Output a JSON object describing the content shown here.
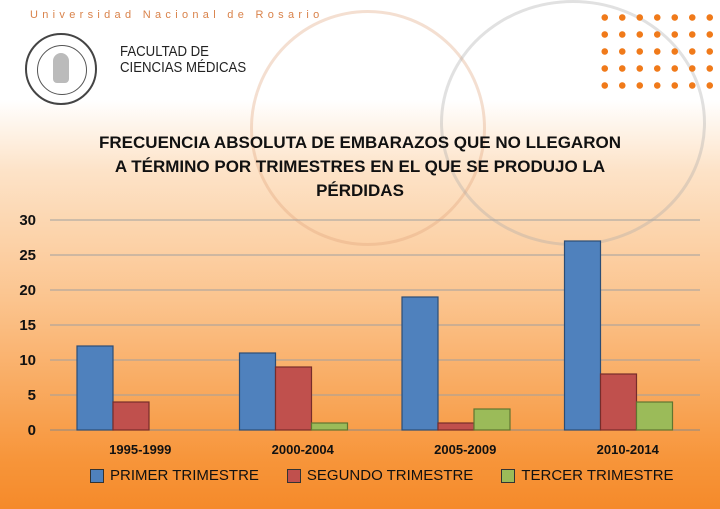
{
  "header": {
    "university": "Universidad Nacional de Rosario",
    "faculty_line1": "FACULTAD DE",
    "faculty_line2": "CIENCIAS MÉDICAS",
    "logo_text": "FACULTAD DE CIENCIAS MÉDICAS U.N.R."
  },
  "colors": {
    "primer": "#4f81bd",
    "segundo": "#c0504d",
    "tercer": "#9bbb59",
    "accent": "#f07a1a"
  },
  "chart_data": {
    "type": "bar",
    "title_lines": [
      "FRECUENCIA ABSOLUTA DE EMBARAZOS QUE NO LLEGARON",
      "A TÉRMINO POR TRIMESTRES EN EL QUE SE PRODUJO LA",
      "PÉRDIDAS"
    ],
    "categories": [
      "1995-1999",
      "2000-2004",
      "2005-2009",
      "2010-2014"
    ],
    "series": [
      {
        "name": "PRIMER TRIMESTRE",
        "values": [
          12,
          11,
          19,
          27
        ]
      },
      {
        "name": "SEGUNDO TRIMESTRE",
        "values": [
          4,
          9,
          1,
          8
        ]
      },
      {
        "name": "TERCER TRIMESTRE",
        "values": [
          0,
          1,
          3,
          4
        ]
      }
    ],
    "yticks": [
      "0",
      "5",
      "10",
      "15",
      "20",
      "25",
      "30"
    ],
    "ylim": [
      0,
      30
    ],
    "grid": true,
    "legend": "bottom",
    "xlabel": "",
    "ylabel": ""
  }
}
